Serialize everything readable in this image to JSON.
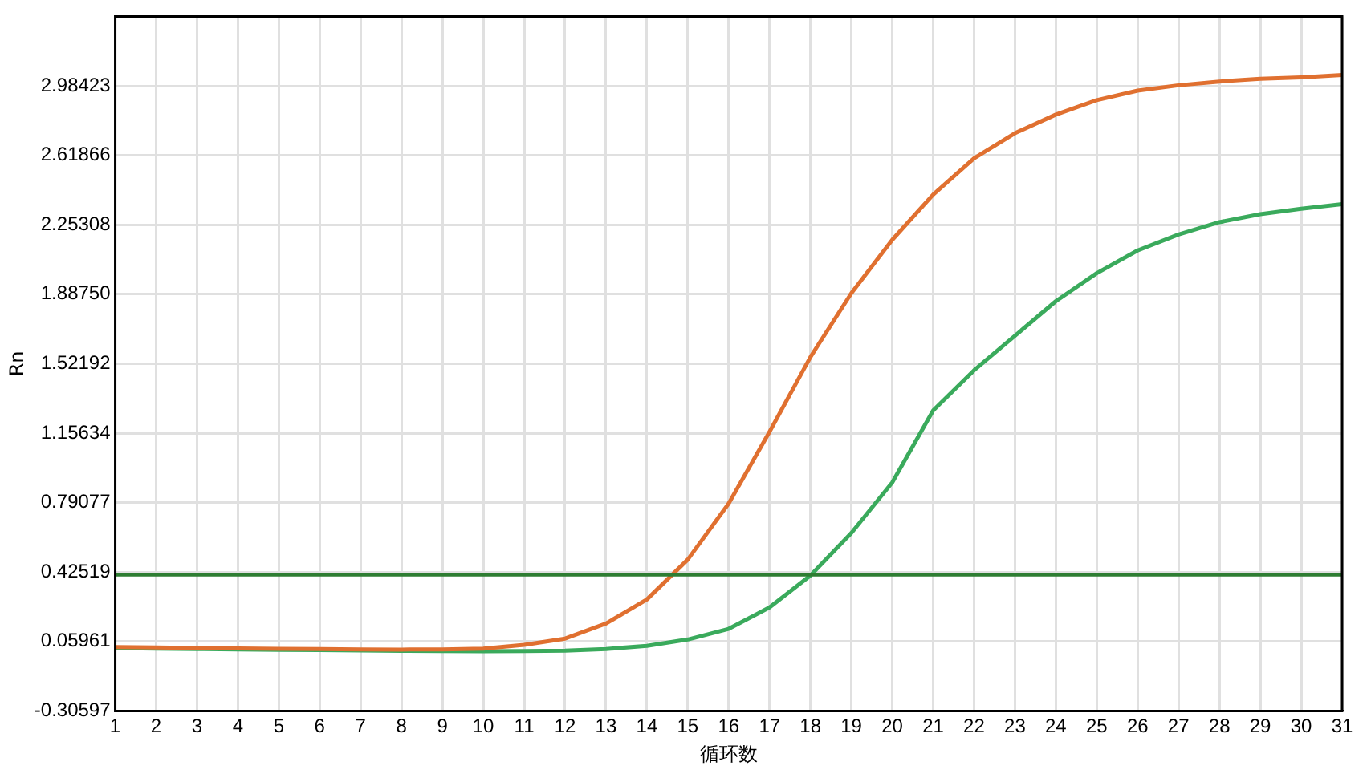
{
  "chart_data": {
    "type": "line",
    "xlabel": "循环数",
    "ylabel": "Rn",
    "x": [
      1,
      2,
      3,
      4,
      5,
      6,
      7,
      8,
      9,
      10,
      11,
      12,
      13,
      14,
      15,
      16,
      17,
      18,
      19,
      20,
      21,
      22,
      23,
      24,
      25,
      26,
      27,
      28,
      29,
      30,
      31
    ],
    "series": [
      {
        "color": "#e07030",
        "values": [
          0.03,
          0.028,
          0.025,
          0.023,
          0.021,
          0.02,
          0.018,
          0.017,
          0.018,
          0.022,
          0.042,
          0.075,
          0.154,
          0.281,
          0.491,
          0.786,
          1.164,
          1.557,
          1.893,
          2.174,
          2.412,
          2.603,
          2.735,
          2.833,
          2.909,
          2.959,
          2.987,
          3.007,
          3.021,
          3.029,
          3.041
        ]
      },
      {
        "color": "#3aaa5c",
        "values": [
          0.025,
          0.022,
          0.02,
          0.018,
          0.016,
          0.014,
          0.012,
          0.01,
          0.009,
          0.008,
          0.009,
          0.011,
          0.02,
          0.037,
          0.07,
          0.126,
          0.239,
          0.407,
          0.631,
          0.897,
          1.276,
          1.487,
          1.669,
          1.851,
          1.998,
          2.118,
          2.202,
          2.267,
          2.309,
          2.337,
          2.362
        ]
      }
    ],
    "xlim": [
      1,
      31
    ],
    "xticks": [
      1,
      2,
      3,
      4,
      5,
      6,
      7,
      8,
      9,
      10,
      11,
      12,
      13,
      14,
      15,
      16,
      17,
      18,
      19,
      20,
      21,
      22,
      23,
      24,
      25,
      26,
      27,
      28,
      29,
      30,
      31
    ],
    "ylim": [
      -0.30597,
      3.35
    ],
    "yticks": [
      -0.30597,
      0.05961,
      0.42519,
      0.79077,
      1.15634,
      1.52192,
      {
        "value": 1.8875,
        "label": "1.88750"
      },
      2.25308,
      2.61866,
      2.98423
    ],
    "ref_lines": [
      {
        "axis": "y",
        "value": 0.41,
        "color": "#2e7d32"
      }
    ],
    "grid": true,
    "legend": false,
    "marker": "none",
    "line_style": "solid"
  }
}
